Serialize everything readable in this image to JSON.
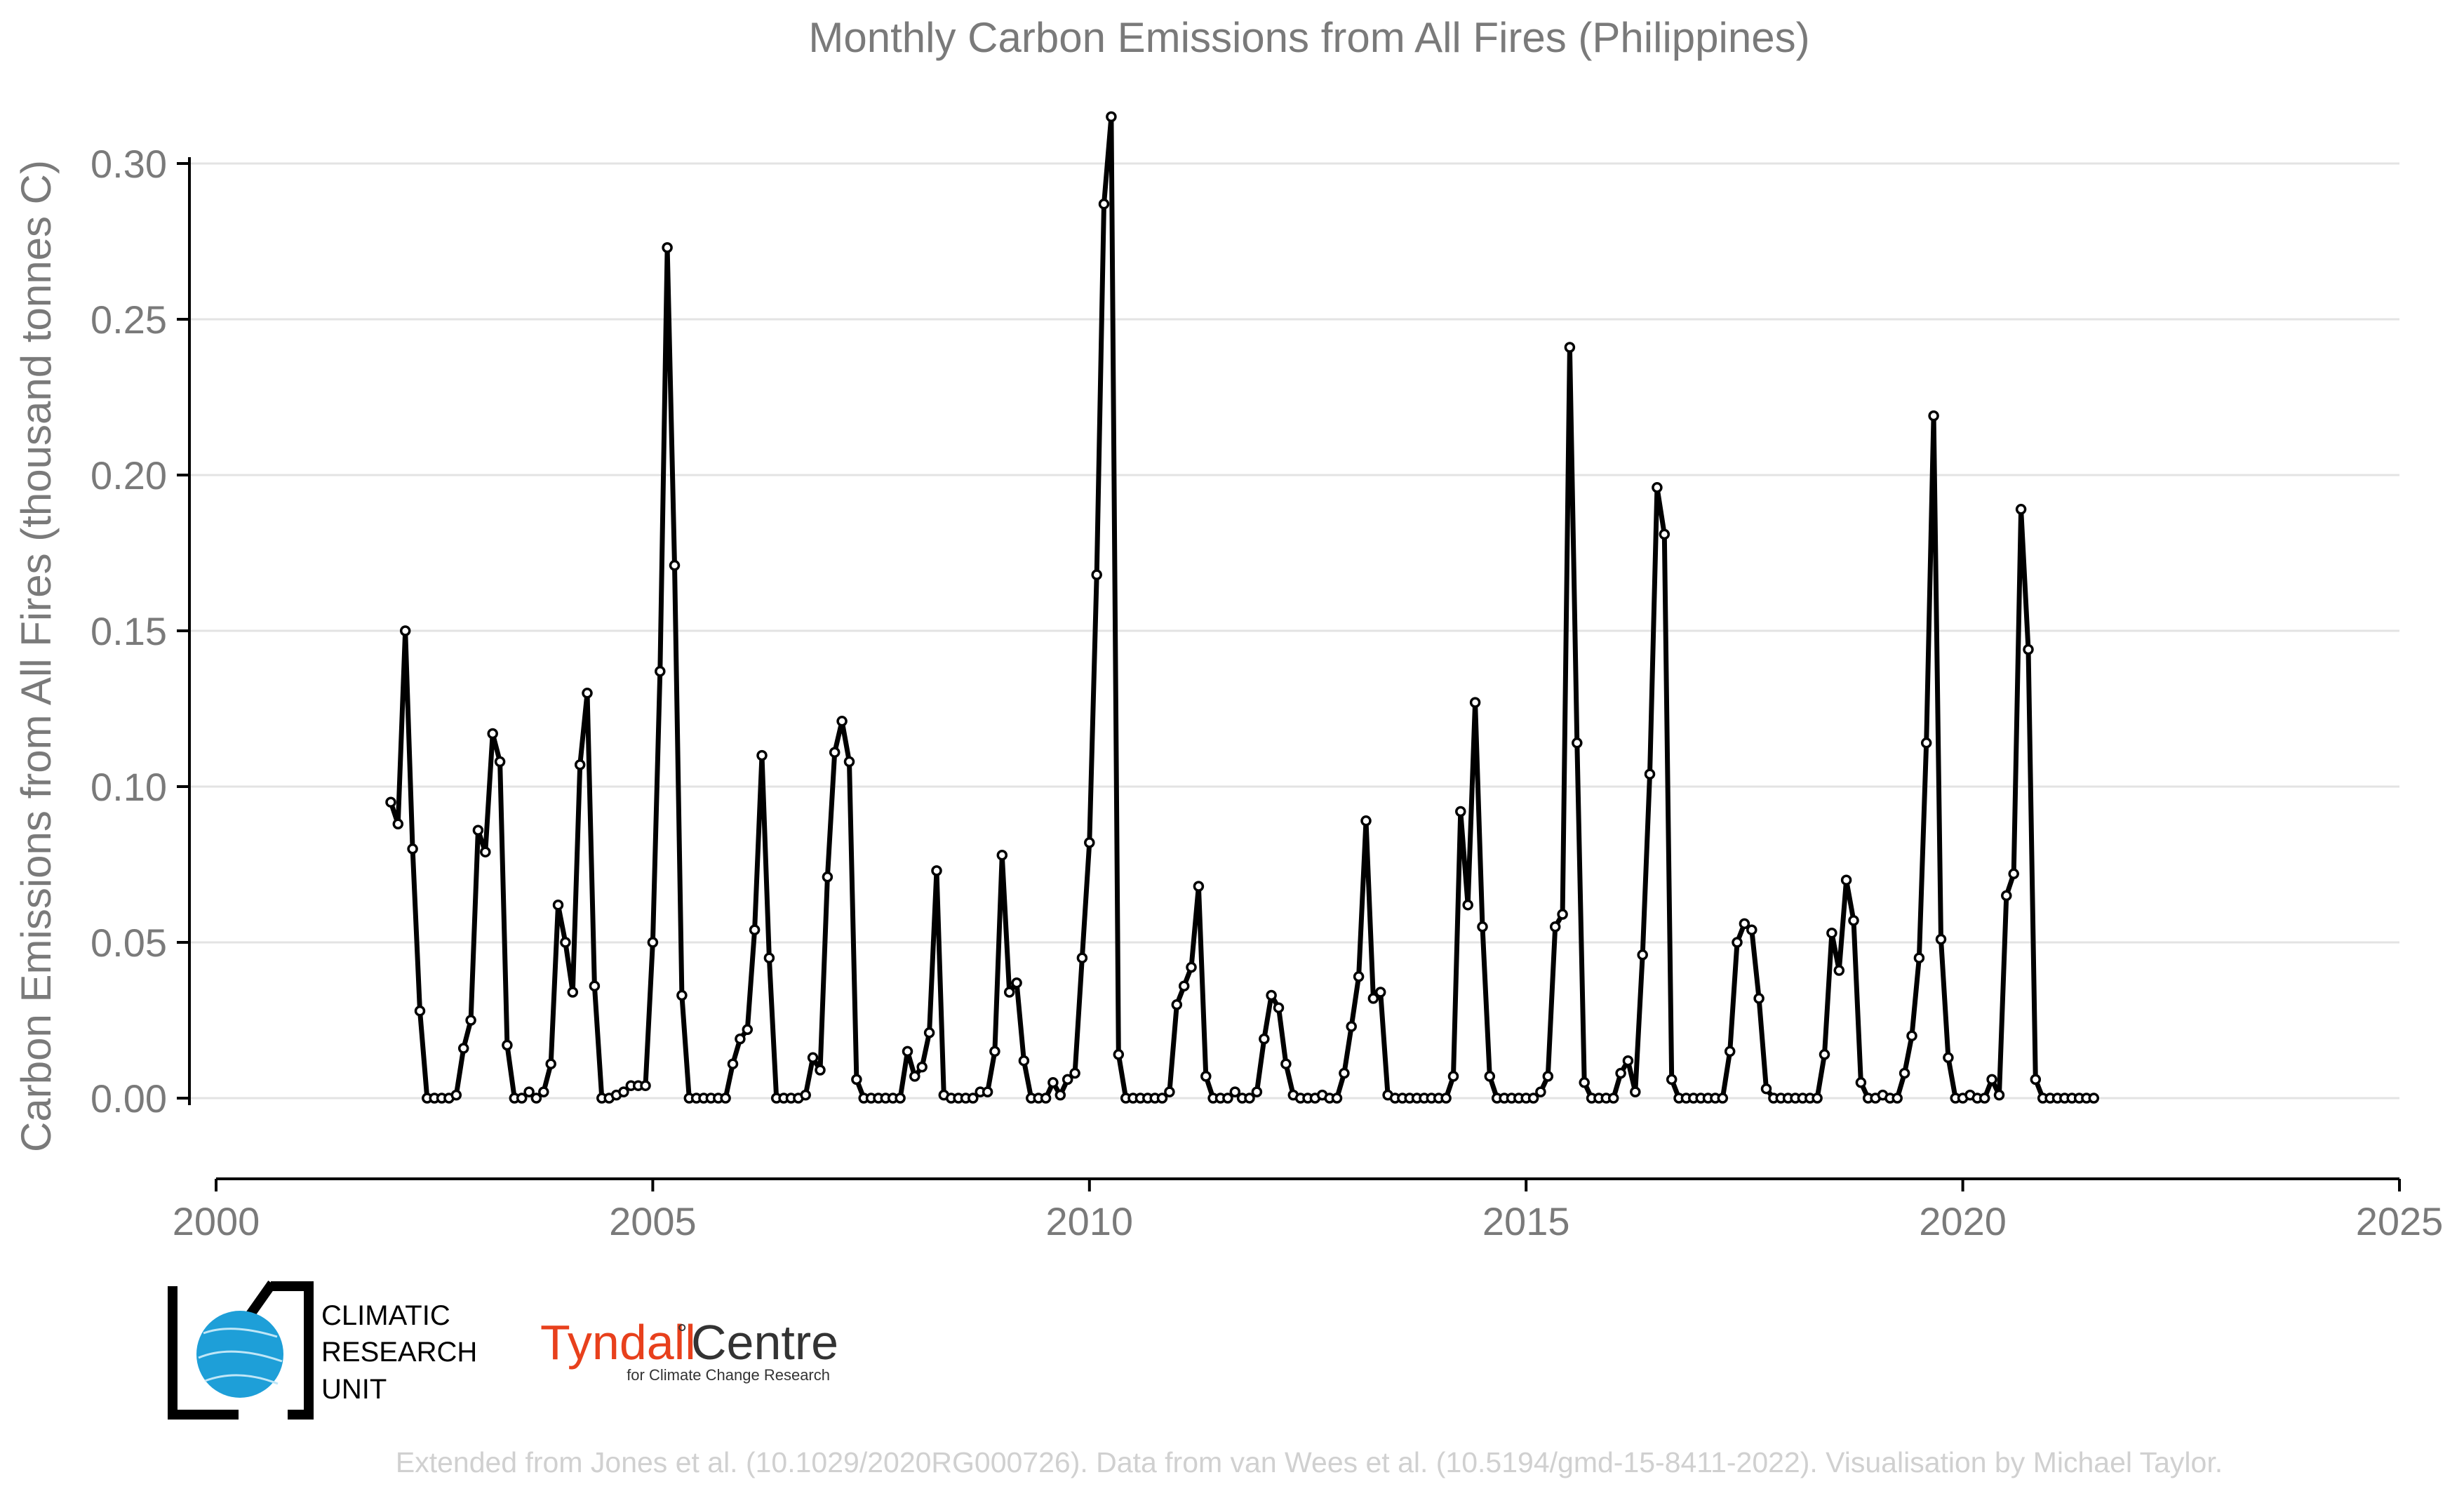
{
  "chart_data": {
    "type": "line",
    "title": "Monthly Carbon Emissions from All Fires (Philippines)",
    "xlabel": "",
    "ylabel": "Carbon Emissions from All Fires (thousand tonnes C)",
    "xlim": [
      2000,
      2025
    ],
    "ylim": [
      -0.025,
      0.325
    ],
    "xticks": [
      2000,
      2005,
      2010,
      2015,
      2020,
      2025
    ],
    "yticks": [
      0.0,
      0.05,
      0.1,
      0.15,
      0.2,
      0.25,
      0.3
    ],
    "ytick_labels": [
      "0.00",
      "0.05",
      "0.10",
      "0.15",
      "0.20",
      "0.25",
      "0.30"
    ],
    "grid": "horizontal",
    "legend": "none",
    "line_color": "#000000",
    "start_year": 2002,
    "start_month": 1,
    "values": [
      0.095,
      0.088,
      0.15,
      0.08,
      0.028,
      0.0,
      0.0,
      0.0,
      0.0,
      0.001,
      0.016,
      0.025,
      0.086,
      0.079,
      0.117,
      0.108,
      0.017,
      0.0,
      0.0,
      0.002,
      0.0,
      0.002,
      0.011,
      0.062,
      0.05,
      0.034,
      0.107,
      0.13,
      0.036,
      0.0,
      0.0,
      0.001,
      0.002,
      0.004,
      0.004,
      0.004,
      0.05,
      0.137,
      0.273,
      0.171,
      0.033,
      0.0,
      0.0,
      0.0,
      0.0,
      0.0,
      0.0,
      0.011,
      0.019,
      0.022,
      0.054,
      0.11,
      0.045,
      0.0,
      0.0,
      0.0,
      0.0,
      0.001,
      0.013,
      0.009,
      0.071,
      0.111,
      0.121,
      0.108,
      0.006,
      0.0,
      0.0,
      0.0,
      0.0,
      0.0,
      0.0,
      0.015,
      0.007,
      0.01,
      0.021,
      0.073,
      0.001,
      0.0,
      0.0,
      0.0,
      0.0,
      0.002,
      0.002,
      0.015,
      0.078,
      0.034,
      0.037,
      0.012,
      0.0,
      0.0,
      0.0,
      0.005,
      0.001,
      0.006,
      0.008,
      0.045,
      0.082,
      0.168,
      0.287,
      0.315,
      0.014,
      0.0,
      0.0,
      0.0,
      0.0,
      0.0,
      0.0,
      0.002,
      0.03,
      0.036,
      0.042,
      0.068,
      0.007,
      0.0,
      0.0,
      0.0,
      0.002,
      0.0,
      0.0,
      0.002,
      0.019,
      0.033,
      0.029,
      0.011,
      0.001,
      0.0,
      0.0,
      0.0,
      0.001,
      0.0,
      0.0,
      0.008,
      0.023,
      0.039,
      0.089,
      0.032,
      0.034,
      0.001,
      0.0,
      0.0,
      0.0,
      0.0,
      0.0,
      0.0,
      0.0,
      0.0,
      0.007,
      0.092,
      0.062,
      0.127,
      0.055,
      0.007,
      0.0,
      0.0,
      0.0,
      0.0,
      0.0,
      0.0,
      0.002,
      0.007,
      0.055,
      0.059,
      0.241,
      0.114,
      0.005,
      0.0,
      0.0,
      0.0,
      0.0,
      0.008,
      0.012,
      0.002,
      0.046,
      0.104,
      0.196,
      0.181,
      0.006,
      0.0,
      0.0,
      0.0,
      0.0,
      0.0,
      0.0,
      0.0,
      0.015,
      0.05,
      0.056,
      0.054,
      0.032,
      0.003,
      0.0,
      0.0,
      0.0,
      0.0,
      0.0,
      0.0,
      0.0,
      0.014,
      0.053,
      0.041,
      0.07,
      0.057,
      0.005,
      0.0,
      0.0,
      0.001,
      0.0,
      0.0,
      0.008,
      0.02,
      0.045,
      0.114,
      0.219,
      0.051,
      0.013,
      0.0,
      0.0,
      0.001,
      0.0,
      0.0,
      0.006,
      0.001,
      0.065,
      0.072,
      0.189,
      0.144,
      0.006,
      0.0,
      0.0,
      0.0,
      0.0,
      0.0,
      0.0,
      0.0,
      0.0
    ]
  },
  "logos": {
    "cru_line1": "CLIMATIC",
    "cru_line2": "RESEARCH",
    "cru_line3": "UNIT",
    "tyndall_a": "Tyndall",
    "tyndall_deg": "°",
    "tyndall_b": "Centre",
    "tyndall_sub": "for Climate Change Research",
    "cru_globe_color": "#1e9fd8"
  },
  "credit": "Extended from Jones et al. (10.1029/2020RG000726). Data from van Wees et al. (10.5194/gmd-15-8411-2022). Visualisation by Michael Taylor."
}
